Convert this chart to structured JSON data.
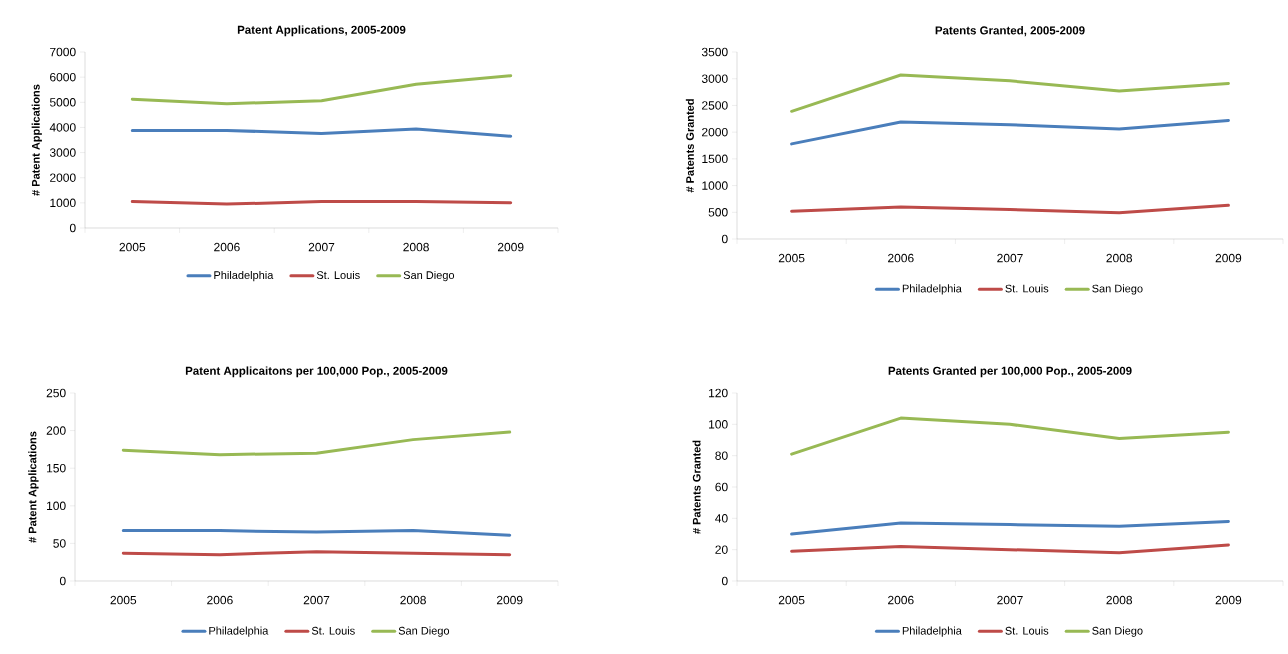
{
  "chart_data": [
    {
      "type": "line",
      "title": "Patent Applications, 2005-2009",
      "ylabel": "# Patent Applications",
      "categories": [
        "2005",
        "2006",
        "2007",
        "2008",
        "2009"
      ],
      "ylim": [
        0,
        7000
      ],
      "yticks": [
        0,
        1000,
        2000,
        3000,
        4000,
        5000,
        6000,
        7000
      ],
      "legend": "bottom",
      "series": [
        {
          "name": "Philadelphia",
          "color": "#4a7ebb",
          "values": [
            3880,
            3880,
            3760,
            3940,
            3650
          ]
        },
        {
          "name": "St. Louis",
          "color": "#be4b48",
          "values": [
            1050,
            950,
            1050,
            1050,
            1000
          ]
        },
        {
          "name": "San Diego",
          "color": "#98b954",
          "values": [
            5120,
            4940,
            5060,
            5720,
            6060
          ]
        }
      ]
    },
    {
      "type": "line",
      "title": "Patents Granted, 2005-2009",
      "ylabel": "# Patents Granted",
      "categories": [
        "2005",
        "2006",
        "2007",
        "2008",
        "2009"
      ],
      "ylim": [
        0,
        3500
      ],
      "yticks": [
        0,
        500,
        1000,
        1500,
        2000,
        2500,
        3000,
        3500
      ],
      "legend": "bottom",
      "series": [
        {
          "name": "Philadelphia",
          "color": "#4a7ebb",
          "values": [
            1780,
            2190,
            2140,
            2060,
            2220
          ]
        },
        {
          "name": "St. Louis",
          "color": "#be4b48",
          "values": [
            520,
            600,
            550,
            490,
            630
          ]
        },
        {
          "name": "San Diego",
          "color": "#98b954",
          "values": [
            2390,
            3070,
            2960,
            2770,
            2910
          ]
        }
      ]
    },
    {
      "type": "line",
      "title": "Patent Applicaitons per 100,000 Pop., 2005-2009",
      "ylabel": "# Patent Applications",
      "categories": [
        "2005",
        "2006",
        "2007",
        "2008",
        "2009"
      ],
      "ylim": [
        0,
        250
      ],
      "yticks": [
        0,
        50,
        100,
        150,
        200,
        250
      ],
      "legend": "bottom",
      "series": [
        {
          "name": "Philadelphia",
          "color": "#4a7ebb",
          "values": [
            67,
            67,
            65,
            67,
            61
          ]
        },
        {
          "name": "St. Louis",
          "color": "#be4b48",
          "values": [
            37,
            35,
            39,
            37,
            35
          ]
        },
        {
          "name": "San Diego",
          "color": "#98b954",
          "values": [
            174,
            168,
            170,
            188,
            198
          ]
        }
      ]
    },
    {
      "type": "line",
      "title": "Patents Granted per 100,000 Pop., 2005-2009",
      "ylabel": "# Patents Granted",
      "categories": [
        "2005",
        "2006",
        "2007",
        "2008",
        "2009"
      ],
      "ylim": [
        0,
        120
      ],
      "yticks": [
        0,
        20,
        40,
        60,
        80,
        100,
        120
      ],
      "legend": "bottom",
      "series": [
        {
          "name": "Philadelphia",
          "color": "#4a7ebb",
          "values": [
            30,
            37,
            36,
            35,
            38
          ]
        },
        {
          "name": "St. Louis",
          "color": "#be4b48",
          "values": [
            19,
            22,
            20,
            18,
            23
          ]
        },
        {
          "name": "San Diego",
          "color": "#98b954",
          "values": [
            81,
            104,
            100,
            91,
            95
          ]
        }
      ]
    }
  ]
}
